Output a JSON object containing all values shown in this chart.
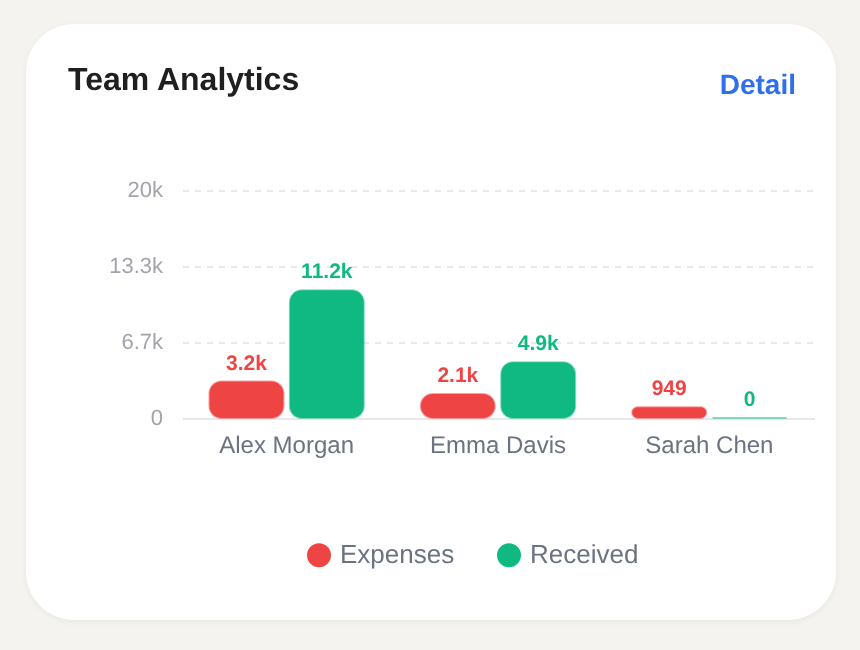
{
  "chart_data": {
    "type": "bar",
    "title": "Team Analytics",
    "annotations": [
      "Detail"
    ],
    "categories": [
      "Alex Morgan",
      "Emma Davis",
      "Sarah Chen"
    ],
    "series": [
      {
        "name": "Expenses",
        "color": "#ef4444",
        "values": [
          3200,
          2100,
          949
        ],
        "value_labels": [
          "3.2k",
          "2.1k",
          "949"
        ]
      },
      {
        "name": "Received",
        "color": "#10b981",
        "values": [
          11200,
          4900,
          0
        ],
        "value_labels": [
          "11.2k",
          "4.9k",
          "0"
        ]
      }
    ],
    "ylim": [
      0,
      20000
    ],
    "yticks": [
      0,
      {
        "value": 6667,
        "label": "6.7k"
      },
      {
        "value": 13333,
        "label": "13.3k"
      },
      {
        "value": 20000,
        "label": "20k"
      }
    ],
    "grid": "y",
    "legend": "bottom"
  }
}
